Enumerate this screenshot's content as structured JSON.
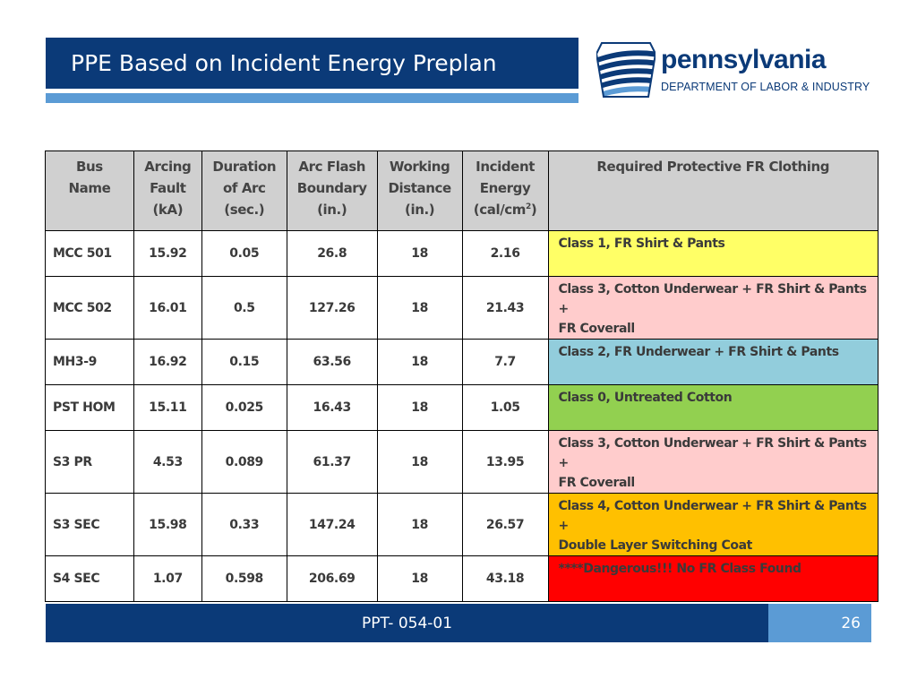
{
  "slide": {
    "title": "PPE Based on Incident Energy Preplan",
    "footer_code": "PPT- 054-01",
    "page_number": "26"
  },
  "logo": {
    "name": "pennsylvania",
    "subtitle": "DEPARTMENT OF LABOR & INDUSTRY",
    "icon": "keystone-icon",
    "color": "#0b3a78"
  },
  "table": {
    "headers": {
      "bus_name": [
        "Bus",
        "Name"
      ],
      "arcing_fault": [
        "Arcing",
        "Fault",
        "(kA)"
      ],
      "duration": [
        "Duration",
        "of Arc",
        "(sec.)"
      ],
      "boundary": [
        "Arc Flash",
        "Boundary",
        "(in.)"
      ],
      "distance": [
        "Working",
        "Distance",
        "(in.)"
      ],
      "energy": [
        "Incident",
        "Energy",
        "(cal/cm",
        "2",
        ")"
      ],
      "clothing": "Required Protective FR Clothing"
    },
    "rows": [
      {
        "bus": "MCC 501",
        "fault": "15.92",
        "duration": "0.05",
        "boundary": "26.8",
        "distance": "18",
        "energy": "2.16",
        "clothing": [
          "Class 1, FR Shirt  & Pants"
        ],
        "color": "#ffff66"
      },
      {
        "bus": "MCC 502",
        "fault": "16.01",
        "duration": "0.5",
        "boundary": "127.26",
        "distance": "18",
        "energy": "21.43",
        "clothing": [
          "Class 3, Cotton  Underwear + FR Shirt & Pants +",
          "FR Coverall"
        ],
        "color": "#ffcccc"
      },
      {
        "bus": "MH3-9",
        "fault": "16.92",
        "duration": "0.15",
        "boundary": "63.56",
        "distance": "18",
        "energy": "7.7",
        "clothing": [
          "Class 2, FR Underwear + FR Shirt & Pants"
        ],
        "color": "#92cddc"
      },
      {
        "bus": "PST HOM",
        "fault": "15.11",
        "duration": "0.025",
        "boundary": "16.43",
        "distance": "18",
        "energy": "1.05",
        "clothing": [
          "Class 0, Untreated Cotton"
        ],
        "color": "#92d050"
      },
      {
        "bus": "S3 PR",
        "fault": "4.53",
        "duration": "0.089",
        "boundary": "61.37",
        "distance": "18",
        "energy": "13.95",
        "clothing": [
          "Class 3, Cotton  Underwear + FR Shirt & Pants +",
          "FR Coverall"
        ],
        "color": "#ffcccc"
      },
      {
        "bus": "S3 SEC",
        "fault": "15.98",
        "duration": "0.33",
        "boundary": "147.24",
        "distance": "18",
        "energy": "26.57",
        "clothing": [
          "Class 4, Cotton  Underwear + FR Shirt & Pants +",
          "Double Layer Switching Coat"
        ],
        "color": "#ffc000"
      },
      {
        "bus": "S4 SEC",
        "fault": "1.07",
        "duration": "0.598",
        "boundary": "206.69",
        "distance": "18",
        "energy": "43.18",
        "clothing": [
          "****Dangerous!!! No FR Class Found"
        ],
        "color": "#ff0000"
      }
    ]
  },
  "colors": {
    "title_bar": "#0b3a78",
    "accent": "#5b9bd5",
    "header_fill": "#d0d0d0"
  }
}
